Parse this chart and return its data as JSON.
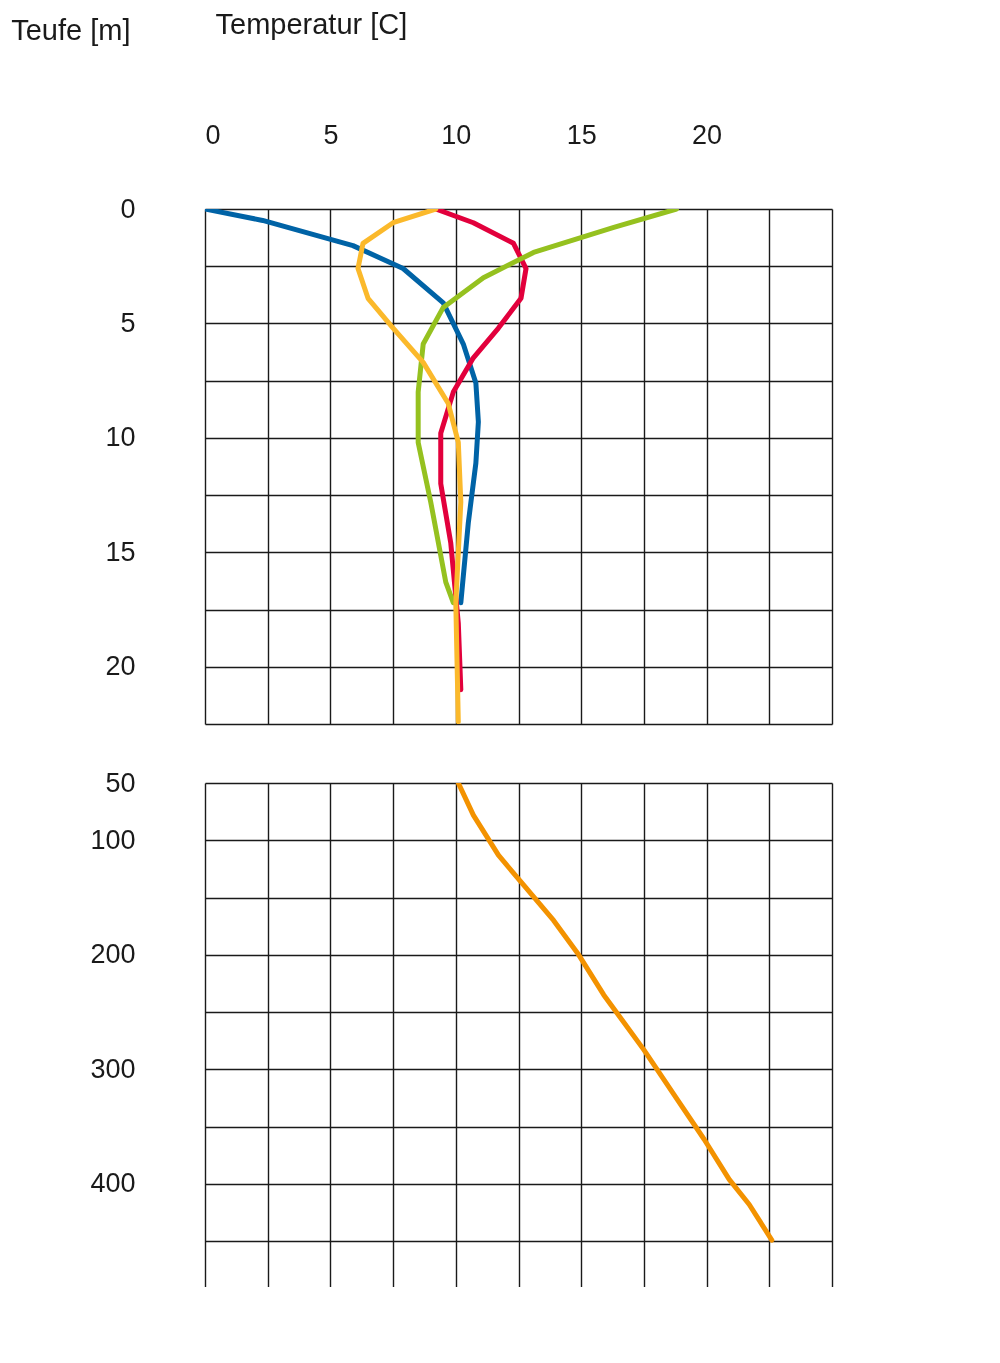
{
  "chart_data": [
    {
      "type": "line",
      "xlabel": "Temperatur [C]",
      "ylabel": "Teufe [m]",
      "xlim": [
        0,
        25
      ],
      "xticks": [
        0,
        {
          "value": 2.5,
          "label": null
        },
        5,
        {
          "value": 7.5,
          "label": null
        },
        10,
        {
          "value": 12.5,
          "label": null
        },
        15,
        {
          "value": 17.5,
          "label": null
        },
        20,
        {
          "value": 22.5,
          "label": null
        },
        {
          "value": 25,
          "label": null
        }
      ],
      "ylim": [
        22.5,
        0
      ],
      "yticks": [
        0,
        {
          "value": 2.5,
          "label": null
        },
        5,
        {
          "value": 7.5,
          "label": null
        },
        10,
        {
          "value": 12.5,
          "label": null
        },
        15,
        {
          "value": 17.5,
          "label": null
        },
        20,
        {
          "value": 22.5,
          "label": null
        }
      ],
      "grid": true,
      "line_style": "solid",
      "series": [
        {
          "color": "#0063a6",
          "x": [
            0,
            2.3,
            5.9,
            7.9,
            9.5,
            10.3,
            10.8,
            10.9,
            10.8,
            10.5,
            10.2
          ],
          "values": [
            0,
            0.5,
            1.6,
            2.6,
            4.1,
            5.9,
            7.6,
            9.3,
            11.1,
            13.7,
            17.2
          ]
        },
        {
          "color": "#e2003c",
          "x": [
            9.2,
            10.7,
            12.3,
            12.8,
            12.6,
            11.7,
            10.7,
            9.9,
            9.4,
            9.4,
            9.8,
            10.1,
            10.2
          ],
          "values": [
            0,
            0.6,
            1.5,
            2.6,
            3.9,
            5.2,
            6.5,
            8.0,
            9.8,
            12.0,
            14.6,
            18.1,
            21
          ]
        },
        {
          "color": "#95c11f",
          "x": [
            18.8,
            16.3,
            13.1,
            11.1,
            9.5,
            8.7,
            8.5,
            8.5,
            9.0,
            9.6,
            9.9
          ],
          "values": [
            0,
            0.8,
            1.9,
            3.0,
            4.3,
            5.9,
            8.0,
            10.2,
            12.8,
            16.3,
            17.2
          ]
        },
        {
          "color": "#fbb92b",
          "x": [
            9.2,
            7.5,
            6.3,
            6.1,
            6.5,
            7.5,
            8.7,
            9.7,
            10.1,
            10.2,
            10.0,
            10.1
          ],
          "values": [
            0,
            0.6,
            1.5,
            2.6,
            3.9,
            5.2,
            6.7,
            8.5,
            10.2,
            12.8,
            17.2,
            22.4
          ]
        }
      ]
    },
    {
      "type": "line",
      "xlim": [
        0,
        25
      ],
      "xticks": [
        0,
        2.5,
        5,
        7.5,
        10,
        12.5,
        15,
        17.5,
        20,
        22.5,
        25
      ],
      "ylim": [
        490,
        50
      ],
      "yticks": [
        50,
        100,
        {
          "value": 150,
          "label": null
        },
        200,
        {
          "value": 250,
          "label": null
        },
        300,
        {
          "value": 350,
          "label": null
        },
        400,
        {
          "value": 450,
          "label": null
        }
      ],
      "grid": true,
      "tick_labels": "y",
      "line_style": "solid",
      "series": [
        {
          "color": "#f39200",
          "x": [
            10.1,
            10.7,
            11.7,
            12.7,
            13.9,
            14.9,
            15.9,
            17.5,
            18.7,
            19.9,
            20.9,
            21.7,
            22.6
          ],
          "values": [
            50,
            78,
            113,
            139,
            170,
            200,
            235,
            283,
            322,
            361,
            396,
            418,
            449
          ]
        }
      ]
    }
  ]
}
